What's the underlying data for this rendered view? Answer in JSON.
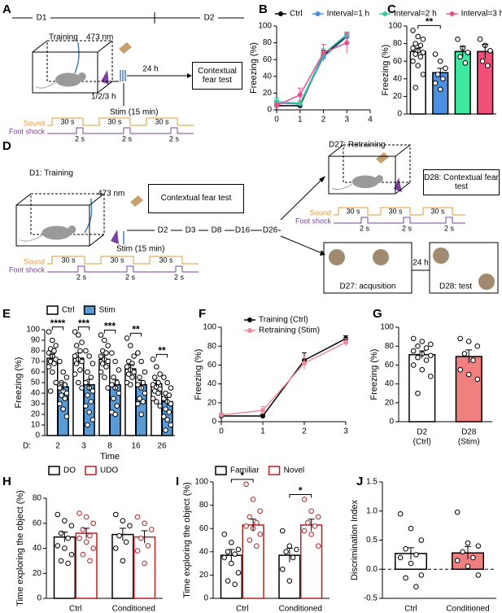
{
  "panels": [
    "A",
    "B",
    "C",
    "D",
    "E",
    "F",
    "G",
    "H",
    "I",
    "J"
  ],
  "diagram_a": {
    "timeline": [
      "D1",
      "D2"
    ],
    "training": "Training",
    "wavelength": "473 nm",
    "interval": "24 h",
    "test": "Contextual fear test",
    "delay": "1/2/3 h",
    "stim": "Stim (15 min)",
    "sound": "Sound",
    "foot_shock": "Foot shock",
    "sound_duration": "30 s",
    "shock_duration": "2 s"
  },
  "diagram_d": {
    "training": "D1: Training",
    "wavelength": "473 nm",
    "stim": "Stim (15 min)",
    "test": "Contextual fear test",
    "days": [
      "D2",
      "D3",
      "D8",
      "D16",
      "D26"
    ],
    "retraining": "D27: Retraining",
    "retest": "D28: Contextual fear test",
    "interval": "24 h",
    "acquisition": "D27: acqusition",
    "object_test": "D28: test",
    "sound": "Sound",
    "foot_shock": "Foot shock",
    "sound_duration": "30 s",
    "shock_duration": "2 s"
  },
  "chart_data": [
    {
      "type": "line",
      "ylabel": "Freezing (%)",
      "x": [
        0,
        1,
        2,
        3
      ],
      "xlim": [
        0,
        4
      ],
      "xticks": [
        0,
        1,
        2,
        3,
        4
      ],
      "ylim": [
        0,
        100
      ],
      "yticks": [
        0,
        20,
        40,
        60,
        80,
        100
      ],
      "series": [
        {
          "name": "Ctrl",
          "color": "#000000",
          "values": [
            5,
            5,
            65,
            88
          ],
          "errors": [
            2,
            2,
            6,
            3
          ]
        },
        {
          "name": "Interval=1 h",
          "color": "#4a90e2",
          "values": [
            8,
            7,
            63,
            87
          ],
          "errors": [
            3,
            2,
            5,
            4
          ]
        },
        {
          "name": "Interval=2 h",
          "color": "#3cc8a0",
          "values": [
            10,
            8,
            67,
            90
          ],
          "errors": [
            4,
            3,
            6,
            3
          ]
        },
        {
          "name": "Interval=3 h",
          "color": "#e8508c",
          "values": [
            5,
            18,
            68,
            80
          ],
          "errors": [
            3,
            8,
            10,
            12
          ]
        }
      ]
    },
    {
      "type": "bar",
      "ylabel": "Freezing (%)",
      "categories": [
        null,
        null,
        null,
        null
      ],
      "values": [
        71,
        47,
        71,
        71
      ],
      "errors": [
        4,
        5,
        6,
        8
      ],
      "colors": [
        "#ffffff",
        "#4a90e2",
        "#3ee8a0",
        "#f0507a"
      ],
      "edge": "#000000",
      "points": [
        [
          95,
          88,
          85,
          80,
          78,
          75,
          72,
          70,
          68,
          65,
          60,
          55,
          45,
          30
        ],
        [
          68,
          60,
          52,
          45,
          40,
          35,
          28
        ],
        [
          85,
          75,
          70,
          65,
          58
        ],
        [
          85,
          78,
          72,
          60,
          55
        ]
      ],
      "ylim": [
        0,
        100
      ],
      "yticks": [
        0,
        20,
        40,
        60,
        80,
        100
      ],
      "significance": [
        "**",
        null,
        null,
        null
      ]
    },
    {
      "type": "bar",
      "ylabel": "Freezing (%)",
      "xlabel": "Time",
      "x_prefix": "D:",
      "categories": [
        "2",
        "3",
        "8",
        "16",
        "26"
      ],
      "series": [
        {
          "name": "Ctrl",
          "color": "#ffffff",
          "edge": "#000000",
          "values": [
            73,
            73,
            72,
            63,
            49
          ],
          "errors": [
            4,
            5,
            4,
            4,
            3
          ],
          "points": [
            [
              98,
              90,
              85,
              82,
              80,
              78,
              75,
              72,
              70,
              68,
              65,
              60,
              50,
              42
            ],
            [
              98,
              95,
              88,
              85,
              80,
              75,
              72,
              70,
              68,
              62,
              58,
              50,
              45
            ],
            [
              95,
              90,
              85,
              80,
              78,
              75,
              72,
              70,
              68,
              65,
              60,
              55,
              45
            ],
            [
              92,
              85,
              75,
              70,
              68,
              65,
              62,
              60,
              58,
              55,
              50,
              48
            ],
            [
              72,
              65,
              58,
              55,
              50,
              48,
              46,
              44,
              42,
              40,
              35,
              32,
              28
            ]
          ]
        },
        {
          "name": "Stim",
          "color": "#5b9bd5",
          "edge": "#000000",
          "values": [
            46,
            48,
            48,
            48,
            32
          ],
          "errors": [
            4,
            5,
            5,
            4,
            4
          ],
          "points": [
            [
              70,
              60,
              55,
              50,
              48,
              45,
              42,
              40,
              38,
              35,
              30,
              25,
              18
            ],
            [
              80,
              75,
              68,
              60,
              55,
              50,
              45,
              42,
              38,
              32,
              28,
              22,
              15,
              10
            ],
            [
              78,
              70,
              62,
              55,
              50,
              48,
              45,
              40,
              35,
              28,
              22,
              20
            ],
            [
              78,
              70,
              60,
              55,
              50,
              48,
              45,
              40,
              35,
              32,
              30,
              20
            ],
            [
              55,
              50,
              45,
              40,
              38,
              35,
              32,
              30,
              25,
              22,
              18,
              15,
              10,
              5
            ]
          ]
        }
      ],
      "ylim": [
        0,
        100
      ],
      "yticks": [
        0,
        10,
        20,
        30,
        40,
        50,
        60,
        70,
        80,
        90,
        100
      ],
      "significance": [
        "****",
        "***",
        "***",
        "**",
        "**"
      ]
    },
    {
      "type": "line",
      "ylabel": "Freezing (%)",
      "x": [
        0,
        1,
        2,
        3
      ],
      "xlim": [
        0,
        3
      ],
      "xticks": [
        0,
        1,
        2,
        3
      ],
      "ylim": [
        0,
        100
      ],
      "yticks": [
        0,
        20,
        40,
        60,
        80,
        100
      ],
      "series": [
        {
          "name": "Training (Ctrl)",
          "color": "#000000",
          "values": [
            6,
            6,
            65,
            88
          ],
          "errors": [
            2,
            2,
            8,
            3
          ]
        },
        {
          "name": "Retraining (Stim)",
          "color": "#f08a9a",
          "values": [
            7,
            12,
            62,
            84
          ],
          "errors": [
            2,
            4,
            7,
            4
          ]
        }
      ]
    },
    {
      "type": "bar",
      "ylabel": "Freezing (%)",
      "categories": [
        "D2",
        "D28"
      ],
      "sublabels": [
        "(Ctrl)",
        "(Stim)"
      ],
      "values": [
        71,
        69
      ],
      "errors": [
        4,
        7
      ],
      "colors": [
        "#ffffff",
        "#f08080"
      ],
      "edge": "#000000",
      "points": [
        [
          88,
          85,
          82,
          80,
          78,
          75,
          72,
          70,
          68,
          65,
          60,
          55,
          48,
          30
        ],
        [
          88,
          85,
          80,
          72,
          65,
          55,
          50,
          45
        ]
      ],
      "ylim": [
        0,
        100
      ],
      "yticks": [
        0,
        20,
        40,
        60,
        80,
        100
      ]
    },
    {
      "type": "bar",
      "ylabel": "Time exploring the object (%)",
      "categories": [
        "Ctrl",
        "Conditioned"
      ],
      "series": [
        {
          "name": "DO",
          "color": "#ffffff",
          "edge": "#000000",
          "values": [
            49,
            51
          ],
          "errors": [
            4,
            5
          ],
          "points": [
            [
              67,
              62,
              58,
              52,
              48,
              42,
              40,
              35,
              30,
              28
            ],
            [
              67,
              62,
              58,
              50,
              45,
              40,
              30
            ]
          ]
        },
        {
          "name": "UDO",
          "color": "#ffffff",
          "edge": "#b22222",
          "values": [
            52,
            49
          ],
          "errors": [
            4,
            5
          ],
          "points": [
            [
              68,
              65,
              60,
              55,
              50,
              48,
              45,
              40,
              35,
              30
            ],
            [
              65,
              60,
              55,
              48,
              42,
              38,
              28
            ]
          ]
        }
      ],
      "ylim": [
        0,
        80
      ],
      "yticks": [
        0,
        20,
        40,
        60,
        80
      ]
    },
    {
      "type": "bar",
      "ylabel": "Time exploring the object (%)",
      "categories": [
        "Ctrl",
        "Conditioned"
      ],
      "series": [
        {
          "name": "Familiar",
          "color": "#ffffff",
          "edge": "#000000",
          "values": [
            37,
            37
          ],
          "errors": [
            5,
            6
          ],
          "points": [
            [
              55,
              48,
              42,
              40,
              38,
              35,
              30,
              22,
              15,
              12
            ],
            [
              58,
              45,
              42,
              40,
              35,
              25,
              15
            ]
          ]
        },
        {
          "name": "Novel",
          "color": "#ffffff",
          "edge": "#b22222",
          "values": [
            63,
            63
          ],
          "errors": [
            5,
            5
          ],
          "points": [
            [
              98,
              85,
              75,
              70,
              65,
              62,
              60,
              55,
              50,
              45
            ],
            [
              85,
              75,
              70,
              65,
              62,
              58,
              55,
              45
            ]
          ]
        }
      ],
      "ylim": [
        0,
        100
      ],
      "yticks": [
        0,
        20,
        40,
        60,
        80,
        100
      ],
      "significance": [
        "*",
        "*"
      ]
    },
    {
      "type": "bar",
      "ylabel": "Discrimination Index",
      "categories": [
        "Ctrl",
        "Conditioned"
      ],
      "values": [
        0.27,
        0.28
      ],
      "errors": [
        0.1,
        0.11
      ],
      "colors": [
        "#ffffff",
        "#f08080"
      ],
      "edge": "#000000",
      "points": [
        [
          0.95,
          0.7,
          0.5,
          0.35,
          0.25,
          0.2,
          0.1,
          -0.1,
          -0.15,
          -0.3
        ],
        [
          0.98,
          0.45,
          0.4,
          0.3,
          0.2,
          0.15,
          0.05,
          -0.1
        ]
      ],
      "ylim": [
        -0.5,
        1.5
      ],
      "yticks": [
        -0.5,
        {
          "value": 0,
          "label": "0.0"
        },
        0.5,
        {
          "value": 1,
          "label": "1.0"
        },
        1.5
      ],
      "zero_line": true
    }
  ]
}
